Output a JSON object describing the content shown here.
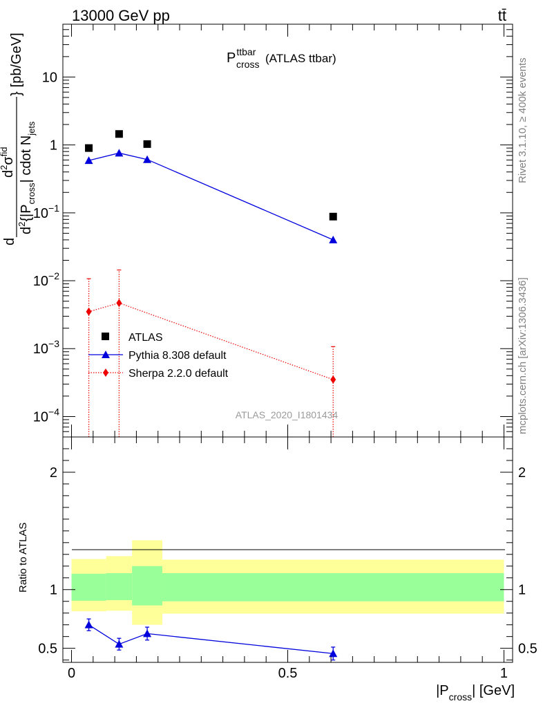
{
  "header": {
    "left": "13000 GeV pp",
    "right": "tt̄"
  },
  "side_labels": {
    "rivet": "Rivet 3.1.10, ≥ 400k events",
    "mcplots": "mcplots.cern.ch [arXiv:1306.3436]"
  },
  "watermark": "ATLAS_2020_I1801434",
  "chart_data": [
    {
      "panel": "main",
      "type": "scatter",
      "title": {
        "main": "P",
        "sup": "ttbar",
        "sub": "cross",
        "suffix": " (ATLAS ttbar)"
      },
      "ylabel": "d²σ^fid / d²{|P_cross| cdot N_jets} [pb/GeV]",
      "ylabel_parts": {
        "d": "d",
        "num_sup": "2",
        "sigma": "σ",
        "fid": "fid",
        "den_d": "d",
        "den_sup": "2",
        "den_body": "{|P",
        "cross": "cross",
        "den_mid": "| cdot N",
        "jets": "jets",
        "close": "}",
        "unit": "[pb/GeV]"
      },
      "yscale": "log",
      "ylim": [
        5e-05,
        60
      ],
      "xlim": [
        -0.02,
        1.02
      ],
      "yticks": [
        {
          "value": 10,
          "base": "10",
          "exp": ""
        },
        {
          "value": 1,
          "base": "1",
          "exp": ""
        },
        {
          "value": 0.1,
          "base": "10",
          "exp": "−1"
        },
        {
          "value": 0.01,
          "base": "10",
          "exp": "−2"
        },
        {
          "value": 0.001,
          "base": "10",
          "exp": "−3"
        },
        {
          "value": 0.0001,
          "base": "10",
          "exp": "−4"
        }
      ],
      "legend_position": "lower-left",
      "series": [
        {
          "name": "ATLAS",
          "color": "#000000",
          "marker": "square",
          "line": "none",
          "x": [
            0.04,
            0.11,
            0.175,
            0.605
          ],
          "y": [
            0.9,
            1.45,
            1.03,
            0.088
          ]
        },
        {
          "name": "Pythia 8.308 default",
          "color": "#0000dd",
          "marker": "triangle",
          "line": "solid",
          "x": [
            0.04,
            0.11,
            0.175,
            0.605
          ],
          "y": [
            0.59,
            0.76,
            0.61,
            0.04
          ]
        },
        {
          "name": "Sherpa 2.2.0 default",
          "color": "#ee0000",
          "marker": "diamond",
          "line": "dotted",
          "x": [
            0.04,
            0.11,
            0.605
          ],
          "y": [
            0.0035,
            0.0047,
            0.00035
          ],
          "yerr_low": [
            0.0035,
            0.0047,
            0.00035
          ],
          "yerr_high": [
            0.0072,
            0.0097,
            0.00072
          ]
        }
      ]
    },
    {
      "panel": "ratio",
      "type": "line",
      "ylabel": "Ratio to ATLAS",
      "xlabel": "|P_cross| [GeV]",
      "xlabel_parts": {
        "pre": "|P",
        "sub": "cross",
        "post": "| [GeV]"
      },
      "xlim": [
        -0.02,
        1.02
      ],
      "ylim": [
        0.38,
        2.3
      ],
      "xticks": [
        0,
        0.5,
        1
      ],
      "xtick_labels": [
        "0",
        "0.5",
        "1"
      ],
      "yticks": [
        0.5,
        1,
        2
      ],
      "ytick_labels": [
        "0.5",
        "1",
        "2"
      ],
      "bands": {
        "edges": [
          0,
          0.08,
          0.14,
          0.21,
          1
        ],
        "yellow_low": [
          0.815,
          0.82,
          0.7,
          0.795
        ],
        "yellow_high": [
          1.26,
          1.285,
          1.42,
          1.255
        ],
        "green_low": [
          0.905,
          0.91,
          0.865,
          0.9
        ],
        "green_high": [
          1.135,
          1.14,
          1.2,
          1.14
        ],
        "yellow_color": "#ffff99",
        "green_color": "#99ff99"
      },
      "series": [
        {
          "name": "Pythia 8.308 default",
          "color": "#0000dd",
          "marker": "triangle",
          "x": [
            0.04,
            0.11,
            0.175,
            0.605
          ],
          "y": [
            0.7,
            0.535,
            0.625,
            0.455
          ],
          "yerr": [
            0.05,
            0.05,
            0.055,
            0.055
          ]
        }
      ]
    }
  ]
}
